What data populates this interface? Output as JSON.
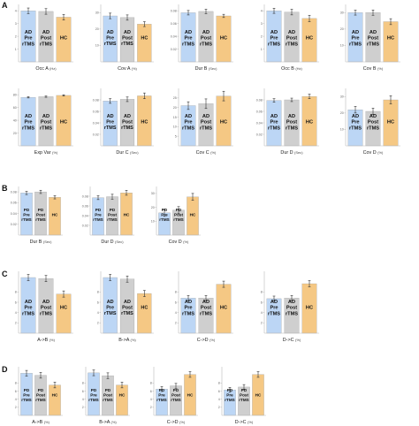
{
  "panel_letters": [
    "A",
    "B",
    "C",
    "D"
  ],
  "groups": {
    "AD": [
      {
        "text": "AD\nPre\nrTMS",
        "color": "#bcd6f5"
      },
      {
        "text": "AD\nPost\nrTMS",
        "color": "#cfcfcf"
      },
      {
        "text": "HC",
        "color": "#f5c884"
      }
    ],
    "PD": [
      {
        "text": "PD\nPre\nrTMS",
        "color": "#bcd6f5"
      },
      {
        "text": "PD\nPost\nrTMS",
        "color": "#cfcfcf"
      },
      {
        "text": "HC",
        "color": "#f5c884"
      }
    ]
  },
  "chart_data": [
    {
      "panel": "A",
      "type": "bar",
      "groups": "AD",
      "xlabel": "Occ A",
      "unit": "(Hz)",
      "yticks": [
        "1",
        "2",
        "3",
        "4"
      ],
      "ylim": [
        0,
        4.5
      ],
      "values": [
        4.0,
        3.95,
        3.5
      ],
      "errors": [
        0.22,
        0.22,
        0.22
      ]
    },
    {
      "panel": "A",
      "type": "bar",
      "groups": "AD",
      "xlabel": "Cov A",
      "unit": "(%)",
      "yticks": [
        "10",
        "20",
        "30"
      ],
      "ylim": [
        0,
        35
      ],
      "values": [
        28,
        27,
        23
      ],
      "errors": [
        1.7,
        1.6,
        1.5
      ]
    },
    {
      "panel": "A",
      "type": "bar",
      "groups": "AD",
      "xlabel": "Dur B",
      "unit": "(Sec)",
      "yticks": [
        "0.02",
        "0.04",
        "0.06",
        "0.08"
      ],
      "ylim": [
        0,
        0.09
      ],
      "values": [
        0.077,
        0.079,
        0.072
      ],
      "errors": [
        0.0035,
        0.0035,
        0.0025
      ]
    },
    {
      "panel": "A",
      "type": "bar",
      "groups": "AD",
      "xlabel": "Occ B",
      "unit": "(Hz)",
      "yticks": [
        "1",
        "2",
        "3",
        "4"
      ],
      "ylim": [
        0,
        4.5
      ],
      "values": [
        4.0,
        3.9,
        3.4
      ],
      "errors": [
        0.2,
        0.22,
        0.25
      ]
    },
    {
      "panel": "A",
      "type": "bar",
      "groups": "AD",
      "xlabel": "Cov B",
      "unit": "(%)",
      "yticks": [
        "10",
        "20",
        "30"
      ],
      "ylim": [
        0,
        35
      ],
      "values": [
        30,
        30,
        24.5
      ],
      "errors": [
        1.5,
        1.6,
        1.8
      ]
    },
    {
      "panel": "A",
      "type": "bar",
      "groups": "AD",
      "xlabel": "Exp Var",
      "unit": "(%)",
      "yticks": [
        "20",
        "40",
        "60",
        "80"
      ],
      "ylim": [
        0,
        90
      ],
      "values": [
        76,
        77,
        79
      ],
      "errors": [
        1,
        1,
        1
      ]
    },
    {
      "panel": "A",
      "type": "bar",
      "groups": "AD",
      "xlabel": "Dur C",
      "unit": "(Sec)",
      "yticks": [
        "0.02",
        "0.04",
        "0.06",
        "0.08"
      ],
      "ylim": [
        0,
        0.1
      ],
      "values": [
        0.078,
        0.081,
        0.087
      ],
      "errors": [
        0.004,
        0.004,
        0.005
      ]
    },
    {
      "panel": "A",
      "type": "bar",
      "groups": "AD",
      "xlabel": "Cov C",
      "unit": "(%)",
      "yticks": [
        "5",
        "10",
        "15",
        "20",
        "25"
      ],
      "ylim": [
        0,
        30
      ],
      "values": [
        21,
        22,
        26
      ],
      "errors": [
        2,
        2.5,
        2.5
      ]
    },
    {
      "panel": "A",
      "type": "bar",
      "groups": "AD",
      "xlabel": "Dur D",
      "unit": "(Sec)",
      "yticks": [
        "0.02",
        "0.04",
        "0.06",
        "0.08"
      ],
      "ylim": [
        0,
        0.1
      ],
      "values": [
        0.079,
        0.08,
        0.086
      ],
      "errors": [
        0.003,
        0.003,
        0.004
      ]
    },
    {
      "panel": "A",
      "type": "bar",
      "groups": "AD",
      "xlabel": "Cov D",
      "unit": "(%)",
      "yticks": [
        "10",
        "20",
        "30"
      ],
      "ylim": [
        0,
        35
      ],
      "values": [
        22,
        21,
        28
      ],
      "errors": [
        2,
        2,
        2.5
      ]
    },
    {
      "panel": "B",
      "type": "bar",
      "groups": "PD",
      "xlabel": "Dur B",
      "unit": "(Sec)",
      "yticks": [
        "0.02",
        "0.04",
        "0.06",
        "0.08"
      ],
      "ylim": [
        0,
        0.09
      ],
      "values": [
        0.078,
        0.08,
        0.07
      ],
      "errors": [
        0.003,
        0.003,
        0.003
      ]
    },
    {
      "panel": "B",
      "type": "bar",
      "groups": "PD",
      "xlabel": "Dur D",
      "unit": "(Sec)",
      "yticks": [
        "0.02",
        "0.04",
        "0.06",
        "0.08"
      ],
      "ylim": [
        0,
        0.1
      ],
      "values": [
        0.077,
        0.079,
        0.087
      ],
      "errors": [
        0.004,
        0.005,
        0.005
      ]
    },
    {
      "panel": "B",
      "type": "bar",
      "groups": "PD",
      "xlabel": "Cov D",
      "unit": "(%)",
      "yticks": [
        "10",
        "20",
        "30"
      ],
      "ylim": [
        0,
        35
      ],
      "values": [
        16,
        18,
        27.5
      ],
      "errors": [
        2.5,
        2.5,
        2.5
      ]
    },
    {
      "panel": "C",
      "type": "bar",
      "groups": "AD",
      "xlabel": "A->B",
      "unit": "(%)",
      "yticks": [
        "2",
        "4",
        "6",
        "8"
      ],
      "ylim": [
        0,
        12
      ],
      "values": [
        10.8,
        10.6,
        7.6
      ],
      "errors": [
        0.6,
        0.6,
        0.6
      ]
    },
    {
      "panel": "C",
      "type": "bar",
      "groups": "AD",
      "xlabel": "B->A",
      "unit": "(%)",
      "yticks": [
        "2",
        "4",
        "6",
        "8"
      ],
      "ylim": [
        0,
        12
      ],
      "values": [
        10.8,
        10.5,
        7.7
      ],
      "errors": [
        0.6,
        0.6,
        0.6
      ]
    },
    {
      "panel": "C",
      "type": "bar",
      "groups": "AD",
      "xlabel": "C->D",
      "unit": "(%)",
      "yticks": [
        "2",
        "4",
        "6",
        "8"
      ],
      "ylim": [
        0,
        12
      ],
      "values": [
        6.8,
        6.8,
        9.5
      ],
      "errors": [
        0.5,
        0.5,
        0.6
      ]
    },
    {
      "panel": "C",
      "type": "bar",
      "groups": "AD",
      "xlabel": "D->C",
      "unit": "(%)",
      "yticks": [
        "2",
        "4",
        "6",
        "8"
      ],
      "ylim": [
        0,
        12
      ],
      "values": [
        6.7,
        6.8,
        9.6
      ],
      "errors": [
        0.5,
        0.5,
        0.6
      ]
    },
    {
      "panel": "D",
      "type": "bar",
      "groups": "PD",
      "xlabel": "A->B",
      "unit": "(%)",
      "yticks": [
        "2",
        "4",
        "6",
        "8"
      ],
      "ylim": [
        0,
        12
      ],
      "values": [
        10.4,
        9.9,
        7.5
      ],
      "errors": [
        0.7,
        0.7,
        0.7
      ]
    },
    {
      "panel": "D",
      "type": "bar",
      "groups": "PD",
      "xlabel": "B->A",
      "unit": "(%)",
      "yticks": [
        "2",
        "4",
        "6",
        "8"
      ],
      "ylim": [
        0,
        12
      ],
      "values": [
        10.5,
        9.8,
        7.5
      ],
      "errors": [
        0.7,
        0.7,
        0.7
      ]
    },
    {
      "panel": "D",
      "type": "bar",
      "groups": "PD",
      "xlabel": "C->D",
      "unit": "(%)",
      "yticks": [
        "2",
        "4",
        "6",
        "8"
      ],
      "ylim": [
        0,
        12
      ],
      "values": [
        6.5,
        7.3,
        10.1
      ],
      "errors": [
        0.6,
        0.6,
        0.7
      ]
    },
    {
      "panel": "D",
      "type": "bar",
      "groups": "PD",
      "xlabel": "D->C",
      "unit": "(%)",
      "yticks": [
        "2",
        "4",
        "6",
        "8"
      ],
      "ylim": [
        0,
        12
      ],
      "values": [
        6.3,
        7.0,
        10.1
      ],
      "errors": [
        0.6,
        0.6,
        0.7
      ]
    }
  ]
}
